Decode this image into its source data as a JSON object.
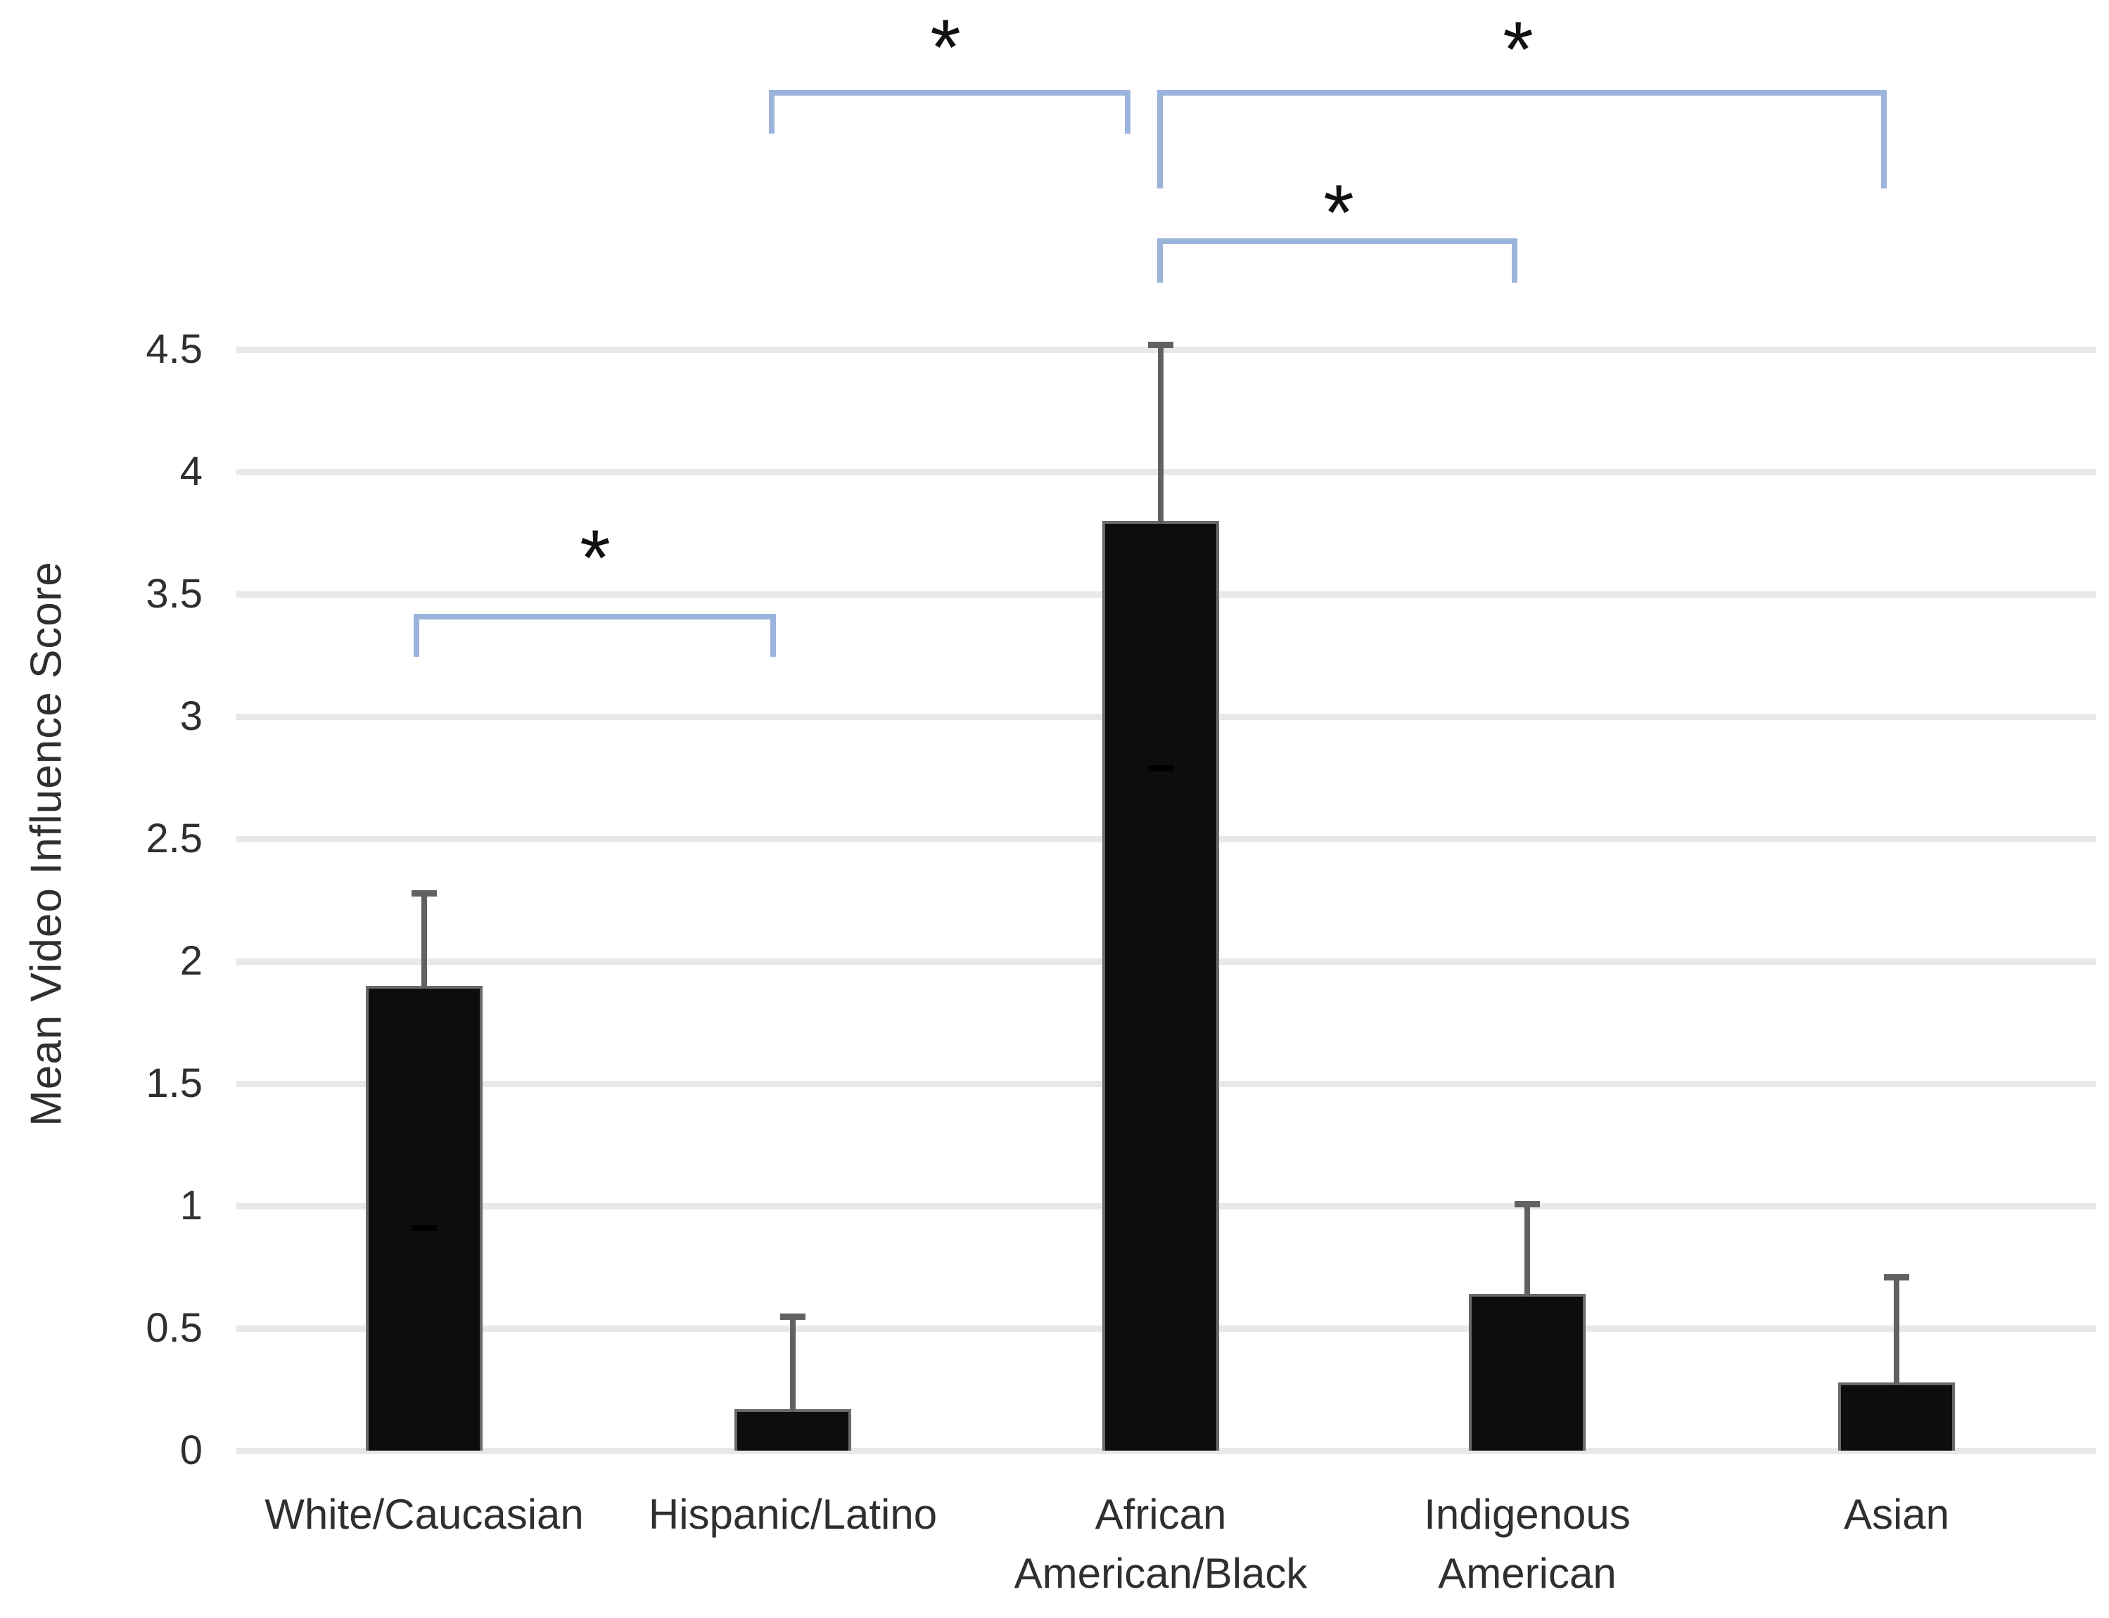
{
  "chart_data": {
    "type": "bar",
    "title": "",
    "xlabel": "",
    "ylabel": "Mean Video Influence Score",
    "ylim": [
      0,
      4.5
    ],
    "ytick_step": 0.5,
    "yticks": [
      "0",
      "0.5",
      "1",
      "1.5",
      "2",
      "2.5",
      "3",
      "3.5",
      "4",
      "4.5"
    ],
    "grid": "horizontal-light",
    "legend": "none",
    "categories": [
      "White/Caucasian",
      "Hispanic/Latino",
      "African American/Black",
      "Indigenous American",
      "Asian"
    ],
    "category_label_lines": [
      [
        "White/Caucasian"
      ],
      [
        "Hispanic/Latino"
      ],
      [
        "African",
        "American/Black"
      ],
      [
        "Indigenous",
        "American"
      ],
      [
        "Asian"
      ]
    ],
    "values": [
      1.9,
      0.17,
      3.8,
      0.64,
      0.28
    ],
    "error_bar_upper": [
      2.28,
      0.55,
      4.52,
      1.01,
      0.71
    ],
    "error_bar_lower_cap": [
      0.91,
      null,
      2.79,
      null,
      null
    ],
    "significance_brackets": [
      {
        "between": [
          "White/Caucasian",
          "Hispanic/Latino"
        ],
        "label": "*"
      },
      {
        "between": [
          "Hispanic/Latino",
          "African American/Black"
        ],
        "label": "*"
      },
      {
        "between": [
          "African American/Black",
          "Asian"
        ],
        "label": "*"
      },
      {
        "between": [
          "African American/Black",
          "Indigenous American"
        ],
        "label": "*"
      }
    ],
    "colors": {
      "bar_fill": "#0d0d0d",
      "bar_edge": "#6a6a6a",
      "bracket": "#9bb4dc",
      "gridline": "#e8e8e8",
      "error_bar": "#616161",
      "text": "#2f2f2f",
      "asterisk": "#111111"
    }
  }
}
